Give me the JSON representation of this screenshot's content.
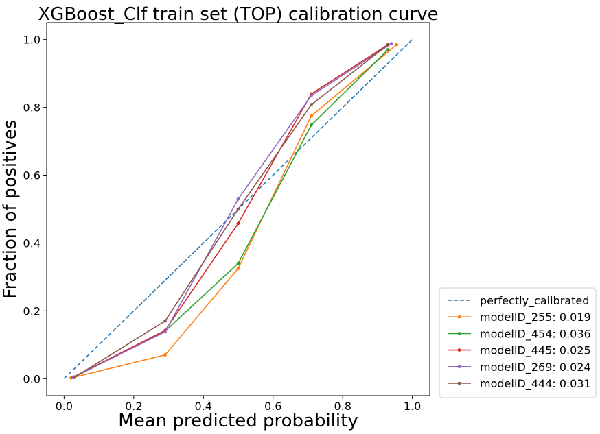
{
  "chart_data": {
    "type": "line",
    "title": "XGBoost_Clf train set (TOP) calibration curve",
    "xlabel": "Mean predicted probability",
    "ylabel": "Fraction of positives",
    "xlim": [
      -0.05,
      1.05
    ],
    "ylim": [
      -0.05,
      1.05
    ],
    "xticks": [
      "0.0",
      "0.2",
      "0.4",
      "0.6",
      "0.8",
      "1.0"
    ],
    "yticks": [
      "0.0",
      "0.2",
      "0.4",
      "0.6",
      "0.8",
      "1.0"
    ],
    "grid": false,
    "legend_position": "outside-bottom-right",
    "series": [
      {
        "name": "perfectly_calibrated",
        "color": "#1f77b4",
        "style": "dashed",
        "marker": false,
        "x": [
          0.0,
          1.0
        ],
        "y": [
          0.0,
          1.0
        ]
      },
      {
        "name": "modelID_255: 0.019",
        "color": "#ff7f0e",
        "style": "solid",
        "marker": true,
        "x": [
          0.02,
          0.29,
          0.5,
          0.71,
          0.955
        ],
        "y": [
          0.002,
          0.07,
          0.325,
          0.775,
          0.985
        ]
      },
      {
        "name": "modelID_454: 0.036",
        "color": "#2ca02c",
        "style": "solid",
        "marker": true,
        "x": [
          0.03,
          0.29,
          0.5,
          0.71,
          0.93
        ],
        "y": [
          0.005,
          0.14,
          0.34,
          0.748,
          0.97
        ]
      },
      {
        "name": "modelID_445: 0.025",
        "color": "#d62728",
        "style": "solid",
        "marker": true,
        "x": [
          0.025,
          0.29,
          0.5,
          0.71,
          0.93
        ],
        "y": [
          0.004,
          0.142,
          0.458,
          0.84,
          0.985
        ]
      },
      {
        "name": "modelID_269: 0.024",
        "color": "#9467bd",
        "style": "solid",
        "marker": true,
        "x": [
          0.025,
          0.29,
          0.5,
          0.71,
          0.94
        ],
        "y": [
          0.003,
          0.138,
          0.53,
          0.835,
          0.988
        ]
      },
      {
        "name": "modelID_444: 0.031",
        "color": "#8c564b",
        "style": "solid",
        "marker": true,
        "x": [
          0.03,
          0.29,
          0.5,
          0.71,
          0.93
        ],
        "y": [
          0.004,
          0.17,
          0.5,
          0.808,
          0.985
        ]
      }
    ]
  }
}
